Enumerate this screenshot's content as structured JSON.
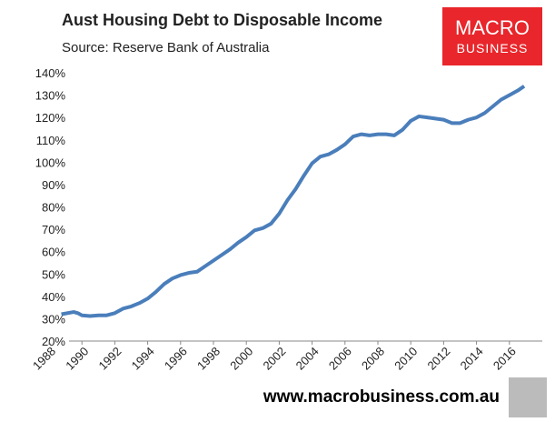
{
  "chart_data": {
    "type": "line",
    "title": "Aust Housing Debt to Disposable Income",
    "subtitle": "Source: Reserve Bank of Australia",
    "logo": [
      "MACRO",
      "BUSINESS"
    ],
    "footer": "www.macrobusiness.com.au",
    "x": [
      1988.75,
      1989.5,
      1989.75,
      1990,
      1990.5,
      1991,
      1991.5,
      1992,
      1992.5,
      1993,
      1993.5,
      1994,
      1994.5,
      1995,
      1995.5,
      1996,
      1996.5,
      1997,
      1997.5,
      1998,
      1998.5,
      1999,
      1999.5,
      2000,
      2000.5,
      2001,
      2001.5,
      2002,
      2002.5,
      2003,
      2003.5,
      2004,
      2004.5,
      2005,
      2005.5,
      2006,
      2006.5,
      2007,
      2007.5,
      2008,
      2008.5,
      2009,
      2009.5,
      2010,
      2010.5,
      2011,
      2011.5,
      2012,
      2012.5,
      2013,
      2013.5,
      2014,
      2014.5,
      2015,
      2015.5,
      2016,
      2016.5,
      2016.9
    ],
    "series": [
      {
        "name": "Housing debt to disposable income",
        "color": "#4a7ebb",
        "values": [
          32,
          33,
          32.5,
          31.5,
          31.2,
          31.5,
          31.5,
          32.5,
          34.5,
          35.5,
          37,
          39,
          42,
          45.5,
          48,
          49.5,
          50.5,
          51,
          53.5,
          56,
          58.5,
          61,
          64,
          66.5,
          69.5,
          70.5,
          72.5,
          77,
          83,
          88,
          94,
          99.5,
          102.5,
          103.5,
          105.5,
          108,
          111.5,
          112.5,
          112,
          112.5,
          112.5,
          112,
          114.5,
          118.5,
          120.5,
          120,
          119.5,
          119,
          117.5,
          117.5,
          119,
          120,
          122,
          125,
          128,
          130,
          132,
          134
        ]
      }
    ],
    "xlim": [
      1988,
      2018
    ],
    "xticks": [
      1988,
      1990,
      1992,
      1994,
      1996,
      1998,
      2000,
      2002,
      2004,
      2006,
      2008,
      2010,
      2012,
      2014,
      2016
    ],
    "ylim": [
      20,
      140
    ],
    "yticks": [
      {
        "value": 20,
        "label": "20%"
      },
      {
        "value": 30,
        "label": "30%"
      },
      {
        "value": 40,
        "label": "40%"
      },
      {
        "value": 50,
        "label": "50%"
      },
      {
        "value": 60,
        "label": "60%"
      },
      {
        "value": 70,
        "label": "70%"
      },
      {
        "value": 80,
        "label": "80%"
      },
      {
        "value": 90,
        "label": "90%"
      },
      {
        "value": 100,
        "label": "100%"
      },
      {
        "value": 110,
        "label": "110%"
      },
      {
        "value": 120,
        "label": "120%"
      },
      {
        "value": 130,
        "label": "130%"
      },
      {
        "value": 140,
        "label": "140%"
      }
    ],
    "grid": false
  }
}
